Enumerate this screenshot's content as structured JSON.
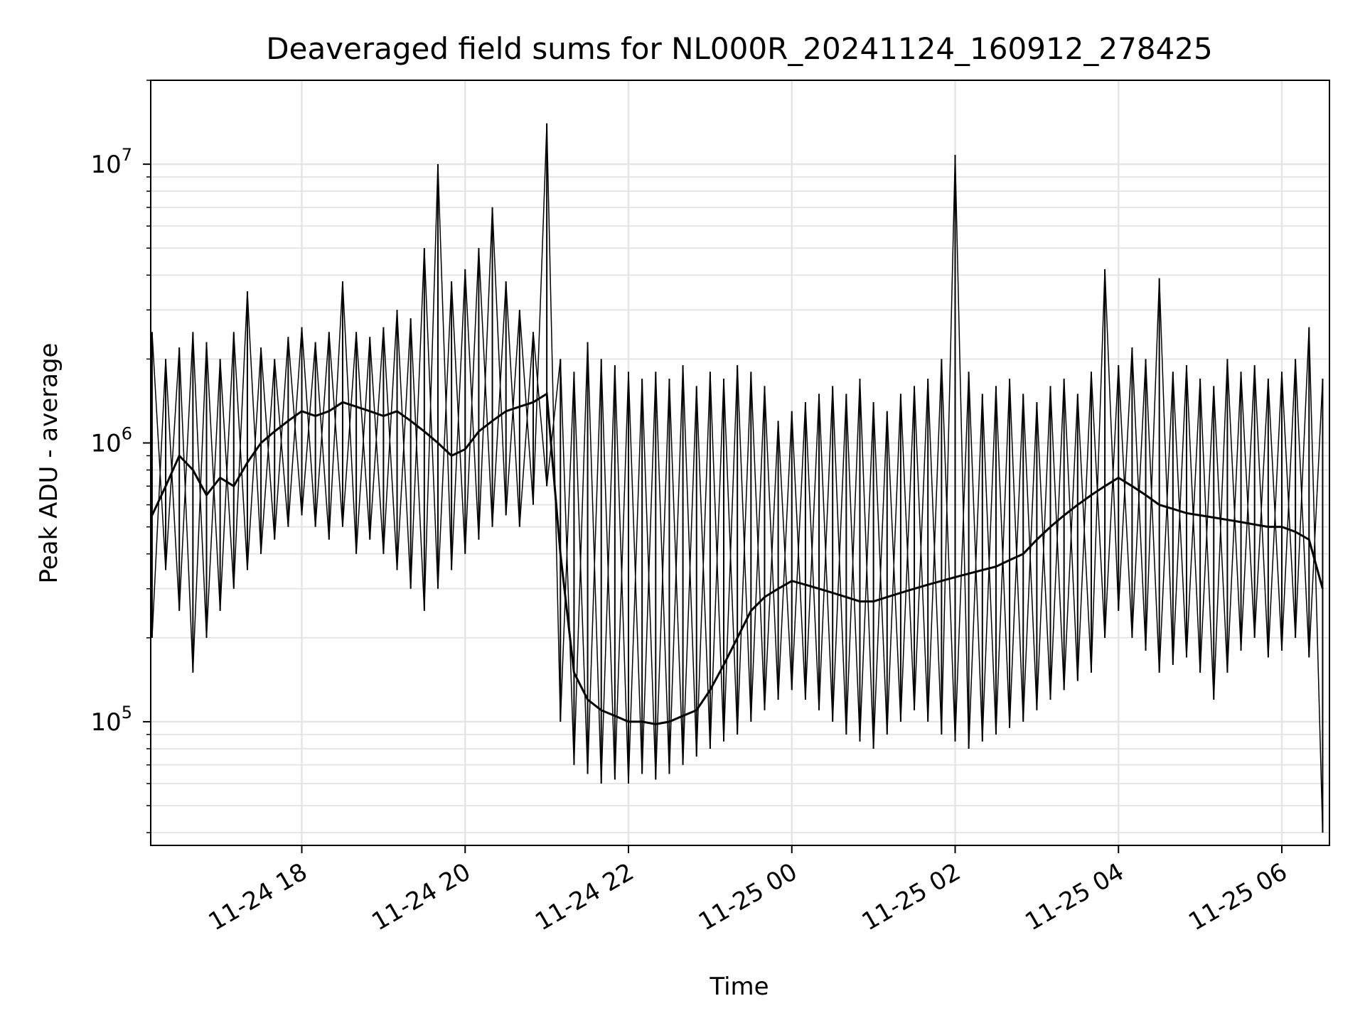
{
  "chart_data": {
    "type": "line",
    "title": "Deaveraged field sums for NL000R_20241124_160912_278425",
    "xlabel": "Time",
    "ylabel": "Peak ADU - average",
    "yscale": "log",
    "ylim": [
      36000,
      20000000
    ],
    "xlim": [
      "2024-11-24 16:09",
      "2024-11-25 06:35"
    ],
    "grid": true,
    "line_color": "#000000",
    "x_ticks": [
      {
        "value": "2024-11-24 18:00",
        "label": "11-24 18"
      },
      {
        "value": "2024-11-24 20:00",
        "label": "11-24 20"
      },
      {
        "value": "2024-11-24 22:00",
        "label": "11-24 22"
      },
      {
        "value": "2024-11-25 00:00",
        "label": "11-25 00"
      },
      {
        "value": "2024-11-25 02:00",
        "label": "11-25 02"
      },
      {
        "value": "2024-11-25 04:00",
        "label": "11-25 04"
      },
      {
        "value": "2024-11-25 06:00",
        "label": "11-25 06"
      }
    ],
    "y_ticks": [
      {
        "value": 100000,
        "base": "10",
        "exp": "5"
      },
      {
        "value": 1000000,
        "base": "10",
        "exp": "6"
      },
      {
        "value": 10000000,
        "base": "10",
        "exp": "7"
      }
    ],
    "series": [
      {
        "x": [
          "2024-11-24 16:10",
          "2024-11-24 16:20",
          "2024-11-24 16:30",
          "2024-11-24 16:40",
          "2024-11-24 16:50",
          "2024-11-24 17:00",
          "2024-11-24 17:10",
          "2024-11-24 17:20",
          "2024-11-24 17:30",
          "2024-11-24 17:40",
          "2024-11-24 17:50",
          "2024-11-24 18:00",
          "2024-11-24 18:10",
          "2024-11-24 18:20",
          "2024-11-24 18:30",
          "2024-11-24 18:40",
          "2024-11-24 18:50",
          "2024-11-24 19:00",
          "2024-11-24 19:10",
          "2024-11-24 19:20",
          "2024-11-24 19:30",
          "2024-11-24 19:40",
          "2024-11-24 19:50",
          "2024-11-24 20:00",
          "2024-11-24 20:10",
          "2024-11-24 20:20",
          "2024-11-24 20:30",
          "2024-11-24 20:40",
          "2024-11-24 20:50",
          "2024-11-24 21:00",
          "2024-11-24 21:10",
          "2024-11-24 21:20",
          "2024-11-24 21:30",
          "2024-11-24 21:40",
          "2024-11-24 21:50",
          "2024-11-24 22:00",
          "2024-11-24 22:10",
          "2024-11-24 22:20",
          "2024-11-24 22:30",
          "2024-11-24 22:40",
          "2024-11-24 22:50",
          "2024-11-24 23:00",
          "2024-11-24 23:10",
          "2024-11-24 23:20",
          "2024-11-24 23:30",
          "2024-11-24 23:40",
          "2024-11-24 23:50",
          "2024-11-25 00:00",
          "2024-11-25 00:10",
          "2024-11-25 00:20",
          "2024-11-25 00:30",
          "2024-11-25 00:40",
          "2024-11-25 00:50",
          "2024-11-25 01:00",
          "2024-11-25 01:10",
          "2024-11-25 01:20",
          "2024-11-25 01:30",
          "2024-11-25 01:40",
          "2024-11-25 01:50",
          "2024-11-25 02:00",
          "2024-11-25 02:10",
          "2024-11-25 02:20",
          "2024-11-25 02:30",
          "2024-11-25 02:40",
          "2024-11-25 02:50",
          "2024-11-25 03:00",
          "2024-11-25 03:10",
          "2024-11-25 03:20",
          "2024-11-25 03:30",
          "2024-11-25 03:40",
          "2024-11-25 03:50",
          "2024-11-25 04:00",
          "2024-11-25 04:10",
          "2024-11-25 04:20",
          "2024-11-25 04:30",
          "2024-11-25 04:40",
          "2024-11-25 04:50",
          "2024-11-25 05:00",
          "2024-11-25 05:10",
          "2024-11-25 05:20",
          "2024-11-25 05:30",
          "2024-11-25 05:40",
          "2024-11-25 05:50",
          "2024-11-25 06:00",
          "2024-11-25 06:10",
          "2024-11-25 06:20",
          "2024-11-25 06:30"
        ],
        "y": [
          550000,
          700000,
          900000,
          800000,
          650000,
          750000,
          700000,
          850000,
          1000000,
          1100000,
          1200000,
          1300000,
          1250000,
          1300000,
          1400000,
          1350000,
          1300000,
          1250000,
          1300000,
          1200000,
          1100000,
          1000000,
          900000,
          950000,
          1100000,
          1200000,
          1300000,
          1350000,
          1400000,
          1500000,
          400000,
          150000,
          120000,
          110000,
          105000,
          100000,
          100000,
          98000,
          100000,
          105000,
          110000,
          130000,
          160000,
          200000,
          250000,
          280000,
          300000,
          320000,
          310000,
          300000,
          290000,
          280000,
          270000,
          270000,
          280000,
          290000,
          300000,
          310000,
          320000,
          330000,
          340000,
          350000,
          360000,
          380000,
          400000,
          450000,
          500000,
          550000,
          600000,
          650000,
          700000,
          750000,
          700000,
          650000,
          600000,
          580000,
          560000,
          550000,
          540000,
          530000,
          520000,
          510000,
          500000,
          500000,
          480000,
          450000,
          300000
        ],
        "min": [
          200000,
          350000,
          250000,
          150000,
          200000,
          250000,
          300000,
          350000,
          400000,
          450000,
          500000,
          550000,
          500000,
          450000,
          500000,
          400000,
          450000,
          400000,
          350000,
          300000,
          250000,
          300000,
          350000,
          400000,
          450000,
          500000,
          550000,
          500000,
          600000,
          700000,
          100000,
          70000,
          65000,
          60000,
          62000,
          60000,
          65000,
          62000,
          65000,
          70000,
          75000,
          80000,
          85000,
          90000,
          100000,
          110000,
          120000,
          130000,
          120000,
          110000,
          100000,
          90000,
          85000,
          80000,
          90000,
          100000,
          110000,
          100000,
          90000,
          85000,
          80000,
          85000,
          90000,
          95000,
          100000,
          110000,
          120000,
          130000,
          140000,
          150000,
          200000,
          250000,
          200000,
          180000,
          150000,
          160000,
          170000,
          150000,
          120000,
          150000,
          180000,
          200000,
          170000,
          180000,
          200000,
          170000,
          40000
        ],
        "max": [
          2500000,
          2000000,
          2200000,
          2500000,
          2300000,
          2000000,
          2500000,
          3500000,
          2200000,
          2000000,
          2400000,
          2600000,
          2300000,
          2500000,
          3800000,
          2500000,
          2400000,
          2600000,
          3000000,
          2800000,
          5000000,
          10000000,
          3800000,
          4200000,
          5000000,
          7000000,
          3800000,
          3000000,
          2500000,
          14000000,
          2000000,
          1800000,
          2300000,
          2000000,
          1900000,
          1800000,
          1700000,
          1800000,
          1700000,
          1900000,
          1600000,
          1800000,
          1700000,
          1900000,
          1800000,
          1600000,
          1200000,
          1300000,
          1400000,
          1500000,
          1600000,
          1500000,
          1700000,
          1400000,
          1300000,
          1500000,
          1600000,
          1700000,
          2000000,
          10800000,
          1800000,
          1500000,
          1600000,
          1700000,
          1500000,
          1400000,
          1600000,
          1700000,
          1500000,
          1800000,
          4200000,
          1900000,
          2200000,
          2000000,
          3900000,
          1800000,
          1900000,
          1700000,
          1600000,
          2000000,
          1800000,
          1900000,
          1700000,
          1800000,
          2000000,
          2600000,
          1700000
        ]
      }
    ]
  }
}
